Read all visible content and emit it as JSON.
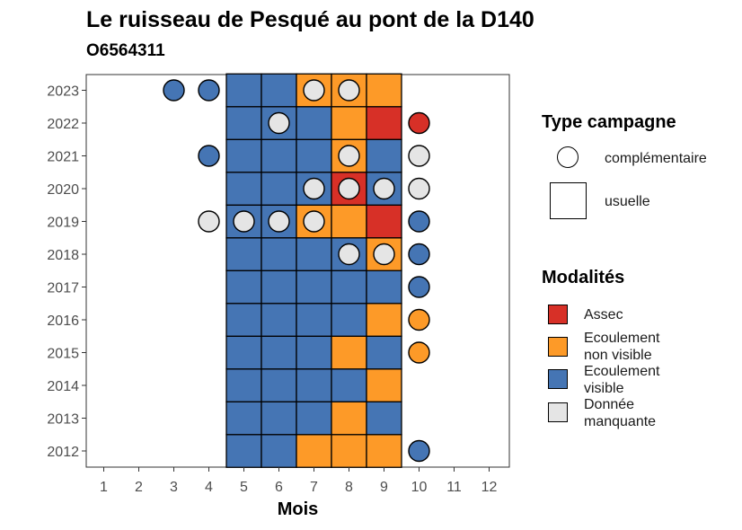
{
  "title": "Le ruisseau de Pesqué au pont de la D140",
  "subtitle": "O6564311",
  "colors": {
    "assec": "#d73027",
    "ecoulement_non_visible": "#fd9a28",
    "ecoulement_visible": "#4575b4",
    "donnee_manquante": "#e5e5e5"
  },
  "legend_type": {
    "title": "Type campagne",
    "items": [
      {
        "label": "complémentaire",
        "shape": "circle"
      },
      {
        "label": "usuelle",
        "shape": "square"
      }
    ]
  },
  "legend_modalites": {
    "title": "Modalités",
    "items": [
      {
        "label": "Assec",
        "key": "A"
      },
      {
        "label": "Ecoulement\nnon visible",
        "key": "N"
      },
      {
        "label": "Ecoulement\nvisible",
        "key": "V"
      },
      {
        "label": "Donnée\nmanquante",
        "key": "M"
      }
    ]
  },
  "chart_data": {
    "type": "heatmap",
    "title": "Le ruisseau de Pesqué au pont de la D140",
    "subtitle": "O6564311",
    "xlabel": "Mois",
    "ylabel": "",
    "x_ticks": [
      "1",
      "2",
      "3",
      "4",
      "5",
      "6",
      "7",
      "8",
      "9",
      "10",
      "11",
      "12"
    ],
    "y_ticks": [
      "2012",
      "2013",
      "2014",
      "2015",
      "2016",
      "2017",
      "2018",
      "2019",
      "2020",
      "2021",
      "2022",
      "2023"
    ],
    "usuelle": {
      "2012": [
        "V",
        "V",
        "N",
        "N",
        "N"
      ],
      "2013": [
        "V",
        "V",
        "V",
        "N",
        "V"
      ],
      "2014": [
        "V",
        "V",
        "V",
        "V",
        "N"
      ],
      "2015": [
        "V",
        "V",
        "V",
        "N",
        "V"
      ],
      "2016": [
        "V",
        "V",
        "V",
        "V",
        "N"
      ],
      "2017": [
        "V",
        "V",
        "V",
        "V",
        "V"
      ],
      "2018": [
        "V",
        "V",
        "V",
        "V",
        "N"
      ],
      "2019": [
        "V",
        "V",
        "N",
        "N",
        "A"
      ],
      "2020": [
        "V",
        "V",
        "V",
        "A",
        "V"
      ],
      "2021": [
        "V",
        "V",
        "V",
        "N",
        "V"
      ],
      "2022": [
        "V",
        "V",
        "V",
        "N",
        "A"
      ],
      "2023": [
        "V",
        "V",
        "N",
        "N",
        "N"
      ]
    },
    "usuelle_months": [
      5,
      6,
      7,
      8,
      9
    ],
    "complementaire": [
      {
        "year": "2023",
        "month": 3,
        "value": "V"
      },
      {
        "year": "2023",
        "month": 4,
        "value": "V"
      },
      {
        "year": "2023",
        "month": 7,
        "value": "M"
      },
      {
        "year": "2023",
        "month": 8,
        "value": "M"
      },
      {
        "year": "2022",
        "month": 6,
        "value": "M"
      },
      {
        "year": "2022",
        "month": 10,
        "value": "A"
      },
      {
        "year": "2021",
        "month": 4,
        "value": "V"
      },
      {
        "year": "2021",
        "month": 8,
        "value": "M"
      },
      {
        "year": "2021",
        "month": 10,
        "value": "M"
      },
      {
        "year": "2020",
        "month": 7,
        "value": "M"
      },
      {
        "year": "2020",
        "month": 8,
        "value": "M"
      },
      {
        "year": "2020",
        "month": 9,
        "value": "M"
      },
      {
        "year": "2020",
        "month": 10,
        "value": "M"
      },
      {
        "year": "2019",
        "month": 4,
        "value": "M"
      },
      {
        "year": "2019",
        "month": 5,
        "value": "M"
      },
      {
        "year": "2019",
        "month": 6,
        "value": "M"
      },
      {
        "year": "2019",
        "month": 7,
        "value": "M"
      },
      {
        "year": "2019",
        "month": 10,
        "value": "V"
      },
      {
        "year": "2018",
        "month": 8,
        "value": "M"
      },
      {
        "year": "2018",
        "month": 9,
        "value": "M"
      },
      {
        "year": "2018",
        "month": 10,
        "value": "V"
      },
      {
        "year": "2017",
        "month": 10,
        "value": "V"
      },
      {
        "year": "2016",
        "month": 10,
        "value": "N"
      },
      {
        "year": "2015",
        "month": 10,
        "value": "N"
      },
      {
        "year": "2012",
        "month": 10,
        "value": "V"
      }
    ]
  }
}
